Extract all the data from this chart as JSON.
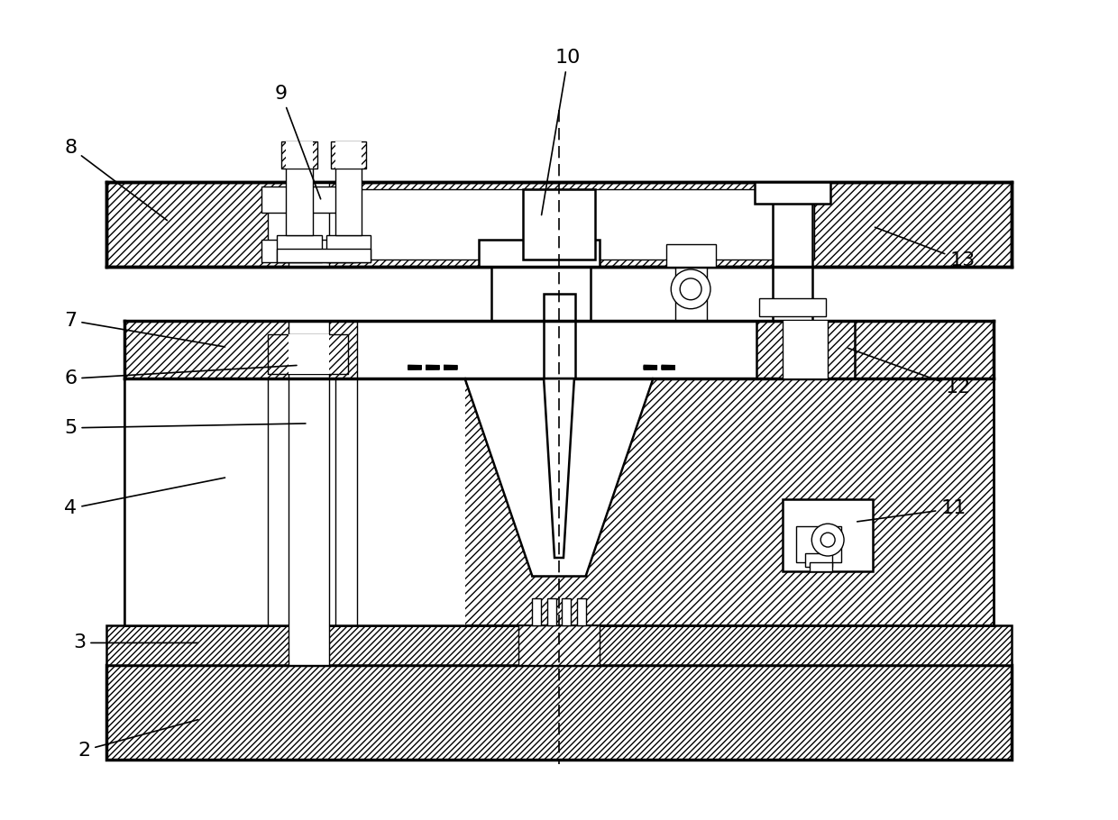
{
  "bg_color": "#ffffff",
  "line_color": "#000000",
  "fig_width": 12.4,
  "fig_height": 9.1,
  "dpi": 100
}
